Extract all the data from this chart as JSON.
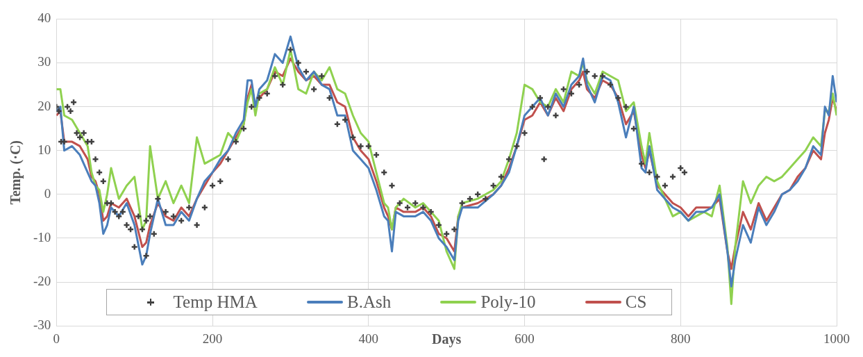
{
  "chart_data": {
    "type": "line",
    "xlabel": "Days",
    "ylabel": "Temp. (·C)",
    "xlim": [
      0,
      1000
    ],
    "xticks": [
      0,
      200,
      400,
      600,
      800,
      1000
    ],
    "ylim": [
      -30,
      40
    ],
    "yticks": [
      -30,
      -20,
      -10,
      0,
      10,
      20,
      30,
      40
    ],
    "grid": true,
    "legend": "bottom",
    "marker": "none",
    "line_style": "solid",
    "x": [
      0,
      5,
      10,
      20,
      30,
      40,
      45,
      50,
      55,
      60,
      65,
      70,
      80,
      90,
      100,
      110,
      115,
      120,
      130,
      140,
      150,
      160,
      170,
      180,
      190,
      200,
      210,
      220,
      230,
      240,
      245,
      250,
      255,
      260,
      270,
      280,
      290,
      300,
      310,
      320,
      330,
      340,
      350,
      360,
      370,
      380,
      390,
      400,
      410,
      420,
      425,
      430,
      435,
      445,
      460,
      470,
      480,
      490,
      500,
      510,
      515,
      520,
      540,
      560,
      570,
      580,
      590,
      600,
      610,
      620,
      630,
      640,
      650,
      660,
      670,
      675,
      680,
      690,
      700,
      710,
      720,
      730,
      740,
      750,
      755,
      760,
      770,
      780,
      790,
      800,
      810,
      820,
      830,
      840,
      850,
      860,
      865,
      870,
      880,
      890,
      900,
      910,
      920,
      930,
      940,
      950,
      960,
      970,
      980,
      985,
      990,
      995,
      1000
    ],
    "series": [
      {
        "name": "Temp HMA",
        "type": "scatter",
        "marker": "cross",
        "color": "#404040",
        "x": [
          0,
          3,
          6,
          10,
          14,
          18,
          22,
          26,
          30,
          35,
          40,
          45,
          50,
          55,
          60,
          65,
          70,
          75,
          80,
          85,
          90,
          95,
          100,
          105,
          110,
          115,
          115,
          120,
          125,
          130,
          140,
          150,
          160,
          170,
          180,
          190,
          200,
          210,
          220,
          230,
          240,
          250,
          260,
          270,
          280,
          290,
          300,
          310,
          320,
          330,
          340,
          350,
          360,
          370,
          380,
          390,
          400,
          410,
          420,
          430,
          440,
          450,
          460,
          470,
          480,
          490,
          500,
          510,
          520,
          530,
          540,
          550,
          560,
          570,
          580,
          590,
          600,
          610,
          620,
          625,
          630,
          640,
          650,
          660,
          670,
          680,
          690,
          700,
          710,
          720,
          730,
          740,
          750,
          760,
          770,
          780,
          790,
          800,
          805
        ],
        "values": [
          20,
          19,
          12,
          12,
          20,
          19,
          21,
          14,
          13,
          14,
          12,
          12,
          8,
          5,
          3,
          -2,
          -2,
          -4,
          -5,
          -4,
          -7,
          -8,
          -12,
          -5,
          -8,
          -6,
          -14,
          -5,
          -9,
          -1,
          -4,
          -5,
          -6,
          -3,
          -7,
          -3,
          2,
          3,
          8,
          12,
          15,
          20,
          22,
          23,
          27,
          25,
          33,
          30,
          28,
          24,
          27,
          22,
          16,
          17,
          13,
          11,
          11,
          9,
          5,
          2,
          -2,
          -3,
          -2,
          -3,
          -4,
          -7,
          -9,
          -8,
          -2,
          -1,
          0,
          -1,
          2,
          4,
          8,
          11,
          14,
          20,
          22,
          8,
          20,
          18,
          24,
          23,
          25,
          28,
          27,
          27,
          25,
          22,
          20,
          15,
          7,
          5,
          4,
          2,
          4,
          6,
          5
        ]
      },
      {
        "name": "B.Ash",
        "type": "line",
        "color": "#4a7ebb",
        "values": [
          19,
          20,
          10,
          11,
          9,
          5,
          3,
          2,
          -2,
          -9,
          -7,
          -3,
          -5,
          -2,
          -7,
          -16,
          -14,
          -9,
          -1,
          -7,
          -7,
          -4,
          -6,
          -1,
          3,
          5,
          8,
          10,
          14,
          17,
          26,
          26,
          20,
          24,
          26,
          32,
          30,
          36,
          29,
          26,
          28,
          25,
          24,
          18,
          18,
          10,
          8,
          6,
          1,
          -5,
          -6,
          -13,
          -4,
          -5,
          -5,
          -4,
          -6,
          -10,
          -12,
          -15,
          -6,
          -3,
          -3,
          0,
          2,
          5,
          11,
          18,
          20,
          22,
          18,
          23,
          20,
          25,
          27,
          31,
          25,
          21,
          27,
          26,
          21,
          13,
          20,
          6,
          5,
          11,
          1,
          -1,
          -3,
          -4,
          -6,
          -4,
          -4,
          -3,
          0,
          -13,
          -21,
          -15,
          -7,
          -11,
          -3,
          -7,
          -4,
          0,
          1,
          3,
          6,
          11,
          9,
          20,
          18,
          27,
          21
        ]
      },
      {
        "name": "Poly-10",
        "type": "line",
        "color": "#8fd14f",
        "values": [
          24,
          24,
          18,
          17,
          14,
          11,
          5,
          2,
          1,
          -4,
          0,
          6,
          -1,
          2,
          4,
          -8,
          -6,
          11,
          -1,
          3,
          -2,
          2,
          -2,
          13,
          7,
          8,
          9,
          14,
          12,
          16,
          21,
          24,
          18,
          23,
          24,
          29,
          25,
          33,
          24,
          23,
          28,
          26,
          29,
          24,
          23,
          18,
          14,
          12,
          5,
          -2,
          -3,
          -8,
          -3,
          -1,
          -3,
          -2,
          -4,
          -6,
          -13,
          -17,
          -5,
          -2,
          -1,
          1,
          3,
          8,
          14,
          25,
          24,
          21,
          20,
          24,
          21,
          28,
          27,
          30,
          26,
          23,
          28,
          27,
          26,
          19,
          21,
          11,
          7,
          14,
          3,
          -1,
          -5,
          -4,
          -6,
          -5,
          -4,
          -5,
          2,
          -12,
          -25,
          -12,
          3,
          -2,
          2,
          4,
          3,
          4,
          6,
          8,
          10,
          13,
          11,
          19,
          19,
          23,
          18
        ]
      },
      {
        "name": "CS",
        "type": "line",
        "color": "#c0504d",
        "values": [
          18,
          19,
          12,
          12,
          11,
          8,
          4,
          3,
          0,
          -6,
          -5,
          -2,
          -3,
          -1,
          -5,
          -12,
          -11,
          -7,
          -2,
          -5,
          -6,
          -3,
          -5,
          -1,
          2,
          5,
          7,
          10,
          13,
          16,
          22,
          25,
          20,
          22,
          24,
          28,
          27,
          31,
          28,
          26,
          27,
          25,
          25,
          21,
          20,
          13,
          10,
          8,
          3,
          -3,
          -5,
          -8,
          -3,
          -4,
          -4,
          -3,
          -5,
          -9,
          -10,
          -13,
          -5,
          -3,
          -2,
          0,
          2,
          6,
          11,
          17,
          18,
          21,
          18,
          22,
          19,
          24,
          26,
          28,
          24,
          22,
          26,
          25,
          22,
          16,
          19,
          9,
          6,
          10,
          2,
          0,
          -2,
          -3,
          -5,
          -3,
          -3,
          -3,
          -1,
          -13,
          -17,
          -12,
          -4,
          -8,
          -2,
          -6,
          -3,
          0,
          1,
          4,
          6,
          10,
          8,
          14,
          17,
          22,
          19
        ]
      }
    ]
  }
}
